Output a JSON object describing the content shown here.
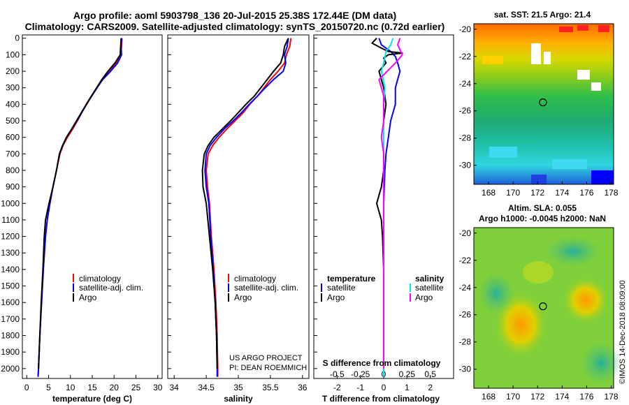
{
  "header": {
    "title_line1": "Argo profile: aoml 5903798_136 20-Jul-2015 25.38S 172.44E (DM data)",
    "title_line2": "Climatology: CARS2009. Satellite-adjusted climatology: synTS_20150720.nc (0.72d earlier)"
  },
  "credits": {
    "project_line1": "US ARGO PROJECT",
    "project_line2": "PI: DEAN ROEMMICH",
    "imos": "©IMOS 14-Dec-2018 08:09:00"
  },
  "colors": {
    "climatology": "#ff0000",
    "satellite": "#0000ff",
    "argo": "#000000",
    "sat_salinity": "#00e5ee",
    "argo_salinity": "#ff00ff"
  },
  "chart_data": [
    {
      "type": "line",
      "id": "temperature",
      "xlabel": "temperature (deg C)",
      "xticks": [
        0,
        5,
        10,
        15,
        20,
        25,
        30
      ],
      "xlim": [
        -1,
        31
      ],
      "yticks": [
        0,
        100,
        200,
        300,
        400,
        500,
        600,
        700,
        800,
        900,
        1000,
        1100,
        1200,
        1300,
        1400,
        1500,
        1600,
        1700,
        1800,
        1900,
        2000
      ],
      "ylim": [
        2060,
        -20
      ],
      "legend": [
        "climatology",
        "satellite-adj. clim.",
        "Argo"
      ],
      "series": [
        {
          "name": "climatology",
          "color": "#ff0000",
          "points": [
            [
              21.8,
              0
            ],
            [
              21.7,
              50
            ],
            [
              21.5,
              100
            ],
            [
              20.4,
              150
            ],
            [
              18.8,
              200
            ],
            [
              17.2,
              250
            ],
            [
              16.0,
              300
            ],
            [
              14.8,
              350
            ],
            [
              13.6,
              400
            ],
            [
              12.6,
              450
            ],
            [
              11.6,
              500
            ],
            [
              10.5,
              550
            ],
            [
              9.3,
              600
            ],
            [
              8.3,
              650
            ],
            [
              7.6,
              700
            ],
            [
              6.8,
              800
            ],
            [
              6.0,
              900
            ],
            [
              5.3,
              1000
            ],
            [
              4.7,
              1100
            ],
            [
              4.3,
              1200
            ],
            [
              3.8,
              1400
            ],
            [
              3.4,
              1600
            ],
            [
              3.0,
              1800
            ],
            [
              2.7,
              2000
            ],
            [
              2.6,
              2050
            ]
          ]
        },
        {
          "name": "satellite-adj. clim.",
          "color": "#0000ff",
          "points": [
            [
              21.7,
              0
            ],
            [
              21.6,
              50
            ],
            [
              21.7,
              100
            ],
            [
              20.8,
              150
            ],
            [
              19.2,
              200
            ],
            [
              17.4,
              250
            ],
            [
              16.1,
              300
            ],
            [
              14.9,
              350
            ],
            [
              13.7,
              400
            ],
            [
              12.6,
              450
            ],
            [
              11.5,
              500
            ],
            [
              10.3,
              550
            ],
            [
              9.1,
              600
            ],
            [
              8.2,
              650
            ],
            [
              7.5,
              700
            ],
            [
              6.8,
              800
            ],
            [
              6.0,
              900
            ],
            [
              5.3,
              1000
            ],
            [
              4.7,
              1100
            ],
            [
              4.3,
              1200
            ],
            [
              3.8,
              1400
            ],
            [
              3.4,
              1600
            ],
            [
              3.0,
              1800
            ],
            [
              2.7,
              2000
            ],
            [
              2.6,
              2050
            ]
          ]
        },
        {
          "name": "Argo",
          "color": "#000000",
          "points": [
            [
              21.6,
              0
            ],
            [
              21.5,
              50
            ],
            [
              21.4,
              100
            ],
            [
              20.2,
              150
            ],
            [
              18.6,
              200
            ],
            [
              17.2,
              250
            ],
            [
              16.0,
              300
            ],
            [
              14.8,
              350
            ],
            [
              13.7,
              400
            ],
            [
              12.5,
              450
            ],
            [
              11.4,
              500
            ],
            [
              10.3,
              550
            ],
            [
              9.1,
              600
            ],
            [
              8.2,
              650
            ],
            [
              7.5,
              700
            ],
            [
              6.8,
              800
            ],
            [
              6.0,
              900
            ],
            [
              5.1,
              1000
            ],
            [
              4.3,
              1100
            ],
            [
              4.0,
              1200
            ],
            [
              3.7,
              1400
            ],
            [
              3.3,
              1600
            ],
            [
              3.0,
              1800
            ],
            [
              2.7,
              2000
            ]
          ]
        }
      ]
    },
    {
      "type": "line",
      "id": "salinity",
      "xlabel": "salinity",
      "xticks": [
        34,
        34.5,
        35,
        35.5,
        36
      ],
      "xlim": [
        33.9,
        36.1
      ],
      "ylim": [
        2060,
        -20
      ],
      "legend": [
        "climatology",
        "satellite-adj. clim.",
        "Argo"
      ],
      "series": [
        {
          "name": "climatology",
          "color": "#ff0000",
          "points": [
            [
              35.82,
              0
            ],
            [
              35.8,
              50
            ],
            [
              35.75,
              100
            ],
            [
              35.72,
              150
            ],
            [
              35.62,
              200
            ],
            [
              35.5,
              250
            ],
            [
              35.4,
              300
            ],
            [
              35.3,
              350
            ],
            [
              35.18,
              400
            ],
            [
              35.08,
              450
            ],
            [
              34.95,
              500
            ],
            [
              34.82,
              550
            ],
            [
              34.7,
              600
            ],
            [
              34.6,
              650
            ],
            [
              34.53,
              700
            ],
            [
              34.5,
              800
            ],
            [
              34.52,
              900
            ],
            [
              34.55,
              1000
            ],
            [
              34.58,
              1200
            ],
            [
              34.62,
              1400
            ],
            [
              34.65,
              1600
            ],
            [
              34.67,
              1800
            ],
            [
              34.68,
              2000
            ],
            [
              34.68,
              2050
            ]
          ]
        },
        {
          "name": "satellite-adj. clim.",
          "color": "#0000ff",
          "points": [
            [
              35.78,
              0
            ],
            [
              35.76,
              50
            ],
            [
              35.72,
              100
            ],
            [
              35.74,
              150
            ],
            [
              35.7,
              200
            ],
            [
              35.55,
              250
            ],
            [
              35.42,
              300
            ],
            [
              35.3,
              350
            ],
            [
              35.17,
              400
            ],
            [
              35.05,
              450
            ],
            [
              34.92,
              500
            ],
            [
              34.78,
              550
            ],
            [
              34.66,
              600
            ],
            [
              34.56,
              650
            ],
            [
              34.5,
              700
            ],
            [
              34.48,
              800
            ],
            [
              34.5,
              900
            ],
            [
              34.54,
              1000
            ],
            [
              34.57,
              1200
            ],
            [
              34.61,
              1400
            ],
            [
              34.64,
              1600
            ],
            [
              34.66,
              1800
            ],
            [
              34.67,
              2000
            ],
            [
              34.67,
              2050
            ]
          ]
        },
        {
          "name": "Argo",
          "color": "#000000",
          "points": [
            [
              35.78,
              0
            ],
            [
              35.72,
              50
            ],
            [
              35.7,
              100
            ],
            [
              35.66,
              150
            ],
            [
              35.55,
              200
            ],
            [
              35.45,
              250
            ],
            [
              35.35,
              300
            ],
            [
              35.25,
              350
            ],
            [
              35.12,
              400
            ],
            [
              35.0,
              450
            ],
            [
              34.88,
              500
            ],
            [
              34.75,
              550
            ],
            [
              34.62,
              600
            ],
            [
              34.53,
              650
            ],
            [
              34.47,
              700
            ],
            [
              34.44,
              800
            ],
            [
              34.45,
              900
            ],
            [
              34.5,
              1000
            ],
            [
              34.55,
              1200
            ],
            [
              34.6,
              1400
            ],
            [
              34.64,
              1600
            ],
            [
              34.66,
              1800
            ],
            [
              34.67,
              2000
            ]
          ]
        }
      ]
    },
    {
      "type": "line",
      "id": "difference",
      "xlabel": "T difference from climatology",
      "xlabel_top": "S difference from climatology",
      "xticks": [
        -2,
        -1,
        0,
        1,
        2
      ],
      "xticks_top": [
        "-0.5",
        "-0.25",
        "0",
        "0.25",
        "0.5"
      ],
      "xlim": [
        -3,
        3
      ],
      "ylim": [
        2060,
        -20
      ],
      "legend_left_title": "temperature",
      "legend_right_title": "salinity",
      "legend_left": [
        "satellite",
        "Argo"
      ],
      "legend_right": [
        "satellite",
        "Argo"
      ],
      "series": [
        {
          "name": "T satellite",
          "color": "#0000ff",
          "points": [
            [
              -0.2,
              0
            ],
            [
              -0.1,
              40
            ],
            [
              0.3,
              80
            ],
            [
              0.5,
              110
            ],
            [
              0.6,
              150
            ],
            [
              0.7,
              200
            ],
            [
              0.5,
              300
            ],
            [
              0.5,
              400
            ],
            [
              0.3,
              500
            ],
            [
              0.2,
              600
            ],
            [
              0.1,
              700
            ],
            [
              0.05,
              800
            ],
            [
              0.0,
              1000
            ],
            [
              0.0,
              1500
            ],
            [
              0.0,
              2000
            ],
            [
              0.0,
              2050
            ]
          ]
        },
        {
          "name": "T Argo",
          "color": "#000000",
          "points": [
            [
              -0.3,
              0
            ],
            [
              -0.5,
              30
            ],
            [
              -0.1,
              60
            ],
            [
              0.2,
              80
            ],
            [
              0.8,
              90
            ],
            [
              0.2,
              100
            ],
            [
              0.0,
              120
            ],
            [
              0.1,
              150
            ],
            [
              -0.2,
              200
            ],
            [
              0.0,
              300
            ],
            [
              0.1,
              400
            ],
            [
              0.0,
              500
            ],
            [
              0.0,
              600
            ],
            [
              0.0,
              700
            ],
            [
              0.0,
              800
            ],
            [
              -0.1,
              900
            ],
            [
              -0.3,
              1000
            ],
            [
              -0.2,
              1050
            ],
            [
              -0.1,
              1100
            ],
            [
              -0.05,
              1200
            ],
            [
              0.0,
              1400
            ],
            [
              0.0,
              2000
            ]
          ]
        },
        {
          "name": "S satellite",
          "color": "#00e5ee",
          "points": [
            [
              0.4,
              0
            ],
            [
              0.3,
              40
            ],
            [
              0.1,
              80
            ],
            [
              0.0,
              150
            ],
            [
              -0.1,
              200
            ],
            [
              0.05,
              300
            ],
            [
              0.0,
              400
            ],
            [
              0.0,
              600
            ],
            [
              0.0,
              800
            ],
            [
              0.0,
              1000
            ],
            [
              0.0,
              1500
            ],
            [
              0.0,
              2000
            ],
            [
              0.0,
              2050
            ]
          ]
        },
        {
          "name": "S Argo",
          "color": "#ff00ff",
          "points": [
            [
              0.7,
              0
            ],
            [
              0.6,
              40
            ],
            [
              0.8,
              100
            ],
            [
              0.5,
              150
            ],
            [
              -0.2,
              250
            ],
            [
              0.0,
              350
            ],
            [
              0.0,
              500
            ],
            [
              -0.1,
              600
            ],
            [
              0.0,
              700
            ],
            [
              0.0,
              800
            ],
            [
              0.0,
              1000
            ],
            [
              0.0,
              1500
            ],
            [
              0.0,
              2000
            ]
          ]
        }
      ]
    },
    {
      "type": "heatmap",
      "id": "sst_map",
      "title": "sat. SST: 21.5 Argo: 21.4",
      "xticks": [
        168,
        170,
        172,
        174,
        176,
        178
      ],
      "yticks": [
        -20,
        -22,
        -24,
        -26,
        -28,
        -30
      ],
      "xlim": [
        166.8,
        178.2
      ],
      "ylim": [
        -31.4,
        -19.6
      ],
      "argo_position": {
        "lon": 172.44,
        "lat": -25.38
      }
    },
    {
      "type": "heatmap",
      "id": "sla_map",
      "title_line1": "Altim. SLA: 0.055",
      "title_line2": "Argo h1000: -0.0045 h2000: NaN",
      "xticks": [
        168,
        170,
        172,
        174,
        176,
        178
      ],
      "yticks": [
        -20,
        -22,
        -24,
        -26,
        -28,
        -30
      ],
      "xlim": [
        166.8,
        178.2
      ],
      "ylim": [
        -31.4,
        -19.6
      ],
      "argo_position": {
        "lon": 172.44,
        "lat": -25.38
      }
    }
  ]
}
